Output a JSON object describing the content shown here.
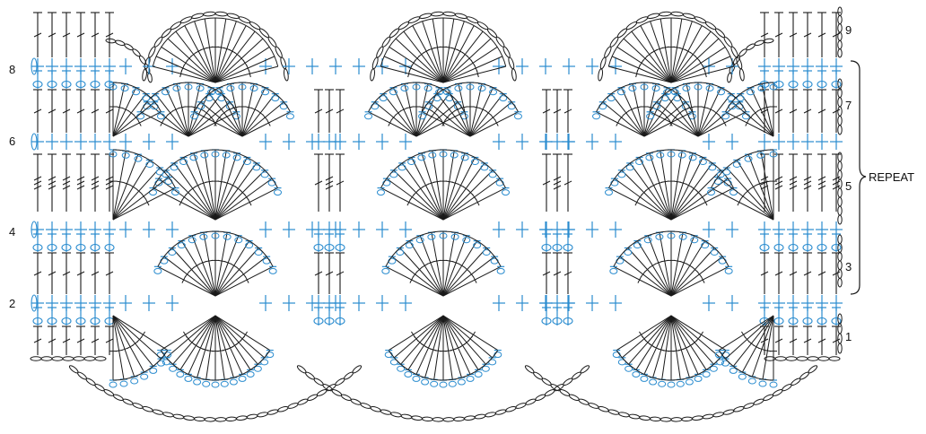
{
  "diagram": {
    "row_labels_left": [
      "8",
      "6",
      "4",
      "2"
    ],
    "row_labels_right": [
      "9",
      "7",
      "5",
      "3",
      "1"
    ],
    "repeat_label": "REPEAT",
    "colors": {
      "ink": "#1a1a1a",
      "accent": "#2a8ccf"
    },
    "stitch_icons": [
      "chain-icon",
      "double-crochet-icon",
      "single-crochet-icon",
      "treble-crochet-icon",
      "shell-fan-icon"
    ]
  }
}
